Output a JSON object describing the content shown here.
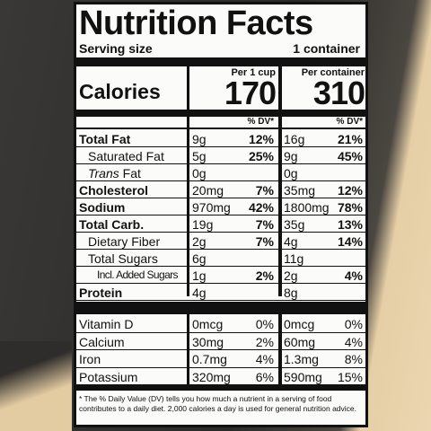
{
  "title": "Nutrition Facts",
  "serving": {
    "label": "Serving size",
    "value": "1 container"
  },
  "calories": {
    "label": "Calories",
    "columns": [
      {
        "header": "Per 1 cup",
        "value": "170"
      },
      {
        "header": "Per container",
        "value": "310"
      }
    ]
  },
  "dv_headers": [
    "% DV*",
    "% DV*"
  ],
  "nutrients": [
    {
      "name": "Total Fat",
      "bold": true,
      "indent": 0,
      "values": [
        [
          "9g",
          "12%"
        ],
        [
          "16g",
          "21%"
        ]
      ]
    },
    {
      "name": "Saturated Fat",
      "bold": false,
      "indent": 1,
      "values": [
        [
          "5g",
          "25%"
        ],
        [
          "9g",
          "45%"
        ]
      ]
    },
    {
      "name": "Trans Fat",
      "bold": false,
      "indent": 1,
      "italic_first_word": true,
      "values": [
        [
          "0g",
          null
        ],
        [
          "0g",
          null
        ]
      ]
    },
    {
      "name": "Cholesterol",
      "bold": true,
      "indent": 0,
      "values": [
        [
          "20mg",
          "7%"
        ],
        [
          "35mg",
          "12%"
        ]
      ]
    },
    {
      "name": "Sodium",
      "bold": true,
      "indent": 0,
      "values": [
        [
          "970mg",
          "42%"
        ],
        [
          "1800mg",
          "78%"
        ]
      ]
    },
    {
      "name": "Total Carb.",
      "bold": true,
      "indent": 0,
      "values": [
        [
          "19g",
          "7%"
        ],
        [
          "35g",
          "13%"
        ]
      ]
    },
    {
      "name": "Dietary Fiber",
      "bold": false,
      "indent": 1,
      "values": [
        [
          "2g",
          "7%"
        ],
        [
          "4g",
          "14%"
        ]
      ]
    },
    {
      "name": "Total Sugars",
      "bold": false,
      "indent": 1,
      "values": [
        [
          "6g",
          null
        ],
        [
          "11g",
          null
        ]
      ]
    },
    {
      "name": "Incl. Added Sugars",
      "bold": false,
      "indent": 2,
      "values": [
        [
          "1g",
          "2%"
        ],
        [
          "2g",
          "4%"
        ]
      ]
    },
    {
      "name": "Protein",
      "bold": true,
      "indent": 0,
      "values": [
        [
          "4g",
          null
        ],
        [
          "8g",
          null
        ]
      ]
    }
  ],
  "vitamins": [
    {
      "name": "Vitamin D",
      "values": [
        [
          "0mcg",
          "0%"
        ],
        [
          "0mcg",
          "0%"
        ]
      ]
    },
    {
      "name": "Calcium",
      "values": [
        [
          "30mg",
          "2%"
        ],
        [
          "60mg",
          "4%"
        ]
      ]
    },
    {
      "name": "Iron",
      "values": [
        [
          "0.7mg",
          "4%"
        ],
        [
          "1.3mg",
          "8%"
        ]
      ]
    },
    {
      "name": "Potassium",
      "values": [
        [
          "320mg",
          "6%"
        ],
        [
          "590mg",
          "15%"
        ]
      ]
    }
  ],
  "footnote": "* The % Daily Value (DV) tells you how much a nutrient in a serving of food contributes to a daily diet. 2,000 calories a day is used for general nutrition advice."
}
